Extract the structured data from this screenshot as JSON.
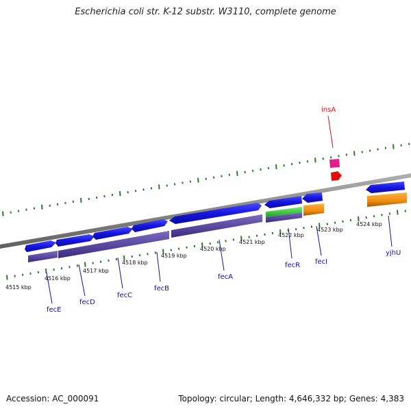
{
  "title": "Escherichia coli str. K-12 substr. W3110, complete genome",
  "footer": {
    "accession": "Accession: AC_000091",
    "summary": "Topology: circular; Length: 4,646,332 bp; Genes: 4,383"
  },
  "colors": {
    "backbone": "#8a8a8a",
    "tick": "#2a7a2a",
    "gene_forward": "#1515e0",
    "cds_bar": "#5a4aa0",
    "cds_orange": "#f08c10",
    "rrna_green": "#30c030",
    "insertion_pink": "#e0208a",
    "insertion_red": "#e01010",
    "label_blue": "#1010a0",
    "label_red": "#d01010"
  },
  "scale": {
    "unit": "kbp",
    "ticks": [
      {
        "label": "4515 kbp"
      },
      {
        "label": "4516 kbp"
      },
      {
        "label": "4517 kbp"
      },
      {
        "label": "4518 kbp"
      },
      {
        "label": "4519 kbp"
      },
      {
        "label": "4520 kbp"
      },
      {
        "label": "4521 kbp"
      },
      {
        "label": "4522 kbp"
      },
      {
        "label": "4523 kbp"
      },
      {
        "label": "4524 kbp"
      }
    ]
  },
  "genes": [
    {
      "name": "fecE",
      "color": "label_blue"
    },
    {
      "name": "fecD",
      "color": "label_blue"
    },
    {
      "name": "fecC",
      "color": "label_blue"
    },
    {
      "name": "fecB",
      "color": "label_blue"
    },
    {
      "name": "fecA",
      "color": "label_blue"
    },
    {
      "name": "fecR",
      "color": "label_blue"
    },
    {
      "name": "fecI",
      "color": "label_blue"
    },
    {
      "name": "yjhU",
      "color": "label_blue"
    },
    {
      "name": "insA",
      "color": "label_red"
    }
  ]
}
